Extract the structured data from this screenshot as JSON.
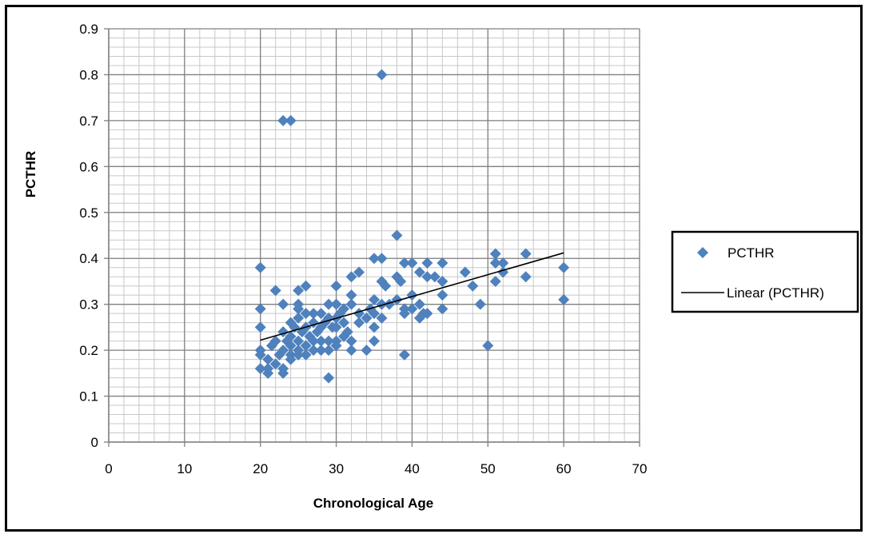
{
  "chart_data": {
    "type": "scatter",
    "title": "",
    "xlabel": "Chronological Age",
    "ylabel": "PCTHR",
    "xlim": [
      0,
      70
    ],
    "ylim": [
      0,
      0.9
    ],
    "x_ticks": [
      "0",
      "10",
      "20",
      "30",
      "40",
      "50",
      "60",
      "70"
    ],
    "y_ticks": [
      "0",
      "0.1",
      "0.2",
      "0.3",
      "0.4",
      "0.5",
      "0.6",
      "0.7",
      "0.8",
      "0.9"
    ],
    "grid": {
      "major": true,
      "minor": true
    },
    "legend_position": "right",
    "marker_color": "#4f81bd",
    "trendline_color": "#000000",
    "series": [
      {
        "name": "PCTHR",
        "marker": "diamond",
        "points": [
          [
            20,
            0.38
          ],
          [
            20,
            0.29
          ],
          [
            20,
            0.25
          ],
          [
            20,
            0.2
          ],
          [
            20,
            0.19
          ],
          [
            20,
            0.16
          ],
          [
            21,
            0.18
          ],
          [
            21,
            0.15
          ],
          [
            21,
            0.16
          ],
          [
            21.5,
            0.21
          ],
          [
            22,
            0.33
          ],
          [
            22,
            0.17
          ],
          [
            22,
            0.22
          ],
          [
            22.5,
            0.19
          ],
          [
            23,
            0.3
          ],
          [
            23,
            0.24
          ],
          [
            23,
            0.2
          ],
          [
            23,
            0.16
          ],
          [
            23,
            0.15
          ],
          [
            23,
            0.7
          ],
          [
            23.5,
            0.22
          ],
          [
            24,
            0.7
          ],
          [
            24,
            0.26
          ],
          [
            24,
            0.23
          ],
          [
            24,
            0.21
          ],
          [
            24,
            0.19
          ],
          [
            24,
            0.18
          ],
          [
            24.5,
            0.25
          ],
          [
            25,
            0.33
          ],
          [
            25,
            0.3
          ],
          [
            25,
            0.29
          ],
          [
            25,
            0.27
          ],
          [
            25,
            0.22
          ],
          [
            25,
            0.2
          ],
          [
            25,
            0.19
          ],
          [
            25.5,
            0.24
          ],
          [
            26,
            0.34
          ],
          [
            26,
            0.28
          ],
          [
            26,
            0.25
          ],
          [
            26,
            0.21
          ],
          [
            26,
            0.19
          ],
          [
            26.5,
            0.23
          ],
          [
            27,
            0.28
          ],
          [
            27,
            0.26
          ],
          [
            27,
            0.22
          ],
          [
            27,
            0.2
          ],
          [
            27.5,
            0.24
          ],
          [
            28,
            0.28
          ],
          [
            28,
            0.25
          ],
          [
            28,
            0.22
          ],
          [
            28,
            0.2
          ],
          [
            28.5,
            0.26
          ],
          [
            29,
            0.3
          ],
          [
            29,
            0.27
          ],
          [
            29,
            0.22
          ],
          [
            29,
            0.2
          ],
          [
            29,
            0.14
          ],
          [
            29.5,
            0.25
          ],
          [
            30,
            0.34
          ],
          [
            30,
            0.3
          ],
          [
            30,
            0.27
          ],
          [
            30,
            0.25
          ],
          [
            30,
            0.22
          ],
          [
            30,
            0.21
          ],
          [
            30.5,
            0.28
          ],
          [
            31,
            0.29
          ],
          [
            31,
            0.26
          ],
          [
            31,
            0.23
          ],
          [
            31.5,
            0.24
          ],
          [
            32,
            0.36
          ],
          [
            32,
            0.32
          ],
          [
            32,
            0.3
          ],
          [
            32,
            0.22
          ],
          [
            32,
            0.2
          ],
          [
            33,
            0.37
          ],
          [
            33,
            0.28
          ],
          [
            33,
            0.26
          ],
          [
            34,
            0.27
          ],
          [
            34,
            0.2
          ],
          [
            34.5,
            0.29
          ],
          [
            35,
            0.4
          ],
          [
            35,
            0.31
          ],
          [
            35,
            0.28
          ],
          [
            35,
            0.25
          ],
          [
            35,
            0.22
          ],
          [
            36,
            0.8
          ],
          [
            36,
            0.4
          ],
          [
            36,
            0.35
          ],
          [
            36,
            0.3
          ],
          [
            36,
            0.27
          ],
          [
            36.5,
            0.34
          ],
          [
            37,
            0.3
          ],
          [
            38,
            0.45
          ],
          [
            38,
            0.36
          ],
          [
            38,
            0.31
          ],
          [
            38.5,
            0.35
          ],
          [
            39,
            0.39
          ],
          [
            39,
            0.29
          ],
          [
            39,
            0.28
          ],
          [
            39,
            0.19
          ],
          [
            40,
            0.39
          ],
          [
            40,
            0.32
          ],
          [
            40,
            0.29
          ],
          [
            41,
            0.37
          ],
          [
            41,
            0.3
          ],
          [
            41,
            0.27
          ],
          [
            41.5,
            0.28
          ],
          [
            42,
            0.39
          ],
          [
            42,
            0.36
          ],
          [
            42,
            0.28
          ],
          [
            43,
            0.36
          ],
          [
            44,
            0.39
          ],
          [
            44,
            0.35
          ],
          [
            44,
            0.32
          ],
          [
            44,
            0.29
          ],
          [
            47,
            0.37
          ],
          [
            48,
            0.34
          ],
          [
            49,
            0.3
          ],
          [
            50,
            0.21
          ],
          [
            51,
            0.41
          ],
          [
            51,
            0.39
          ],
          [
            51,
            0.35
          ],
          [
            52,
            0.39
          ],
          [
            52,
            0.37
          ],
          [
            55,
            0.41
          ],
          [
            55,
            0.36
          ],
          [
            60,
            0.38
          ],
          [
            60,
            0.31
          ]
        ]
      },
      {
        "name": "Linear (PCTHR)",
        "kind": "trendline",
        "points": [
          [
            20,
            0.222
          ],
          [
            60,
            0.412
          ]
        ]
      }
    ]
  }
}
